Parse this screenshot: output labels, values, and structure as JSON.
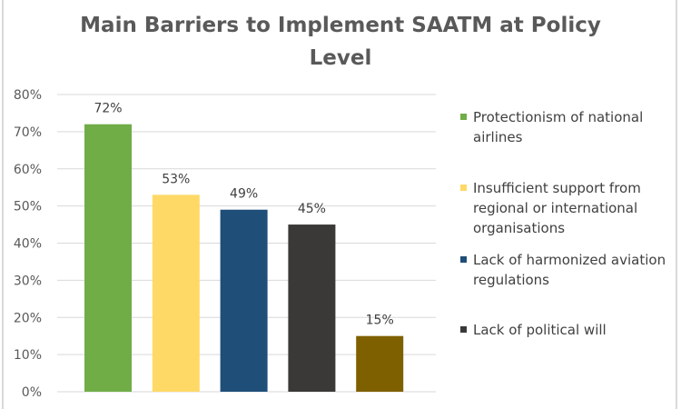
{
  "chart_data": {
    "type": "bar",
    "title": "Main Barriers to Implement SAATM at Policy Level",
    "series": [
      {
        "name": "Protectionism of national airlines",
        "value": 72,
        "label": "72%",
        "color": "#70AD47"
      },
      {
        "name": "Insufficient support from regional or international organisations",
        "value": 53,
        "label": "53%",
        "color": "#FFD966"
      },
      {
        "name": "Lack of harmonized aviation regulations",
        "value": 49,
        "label": "49%",
        "color": "#1F4E79"
      },
      {
        "name": "Lack of political will",
        "value": 45,
        "label": "45%",
        "color": "#3B3838"
      },
      {
        "value": 15,
        "label": "15%",
        "color": "#7F6000"
      }
    ],
    "yticks": [
      "0%",
      "10%",
      "20%",
      "30%",
      "40%",
      "50%",
      "60%",
      "70%",
      "80%"
    ],
    "ylim": [
      0,
      80
    ],
    "grid": true,
    "legend": "right"
  }
}
